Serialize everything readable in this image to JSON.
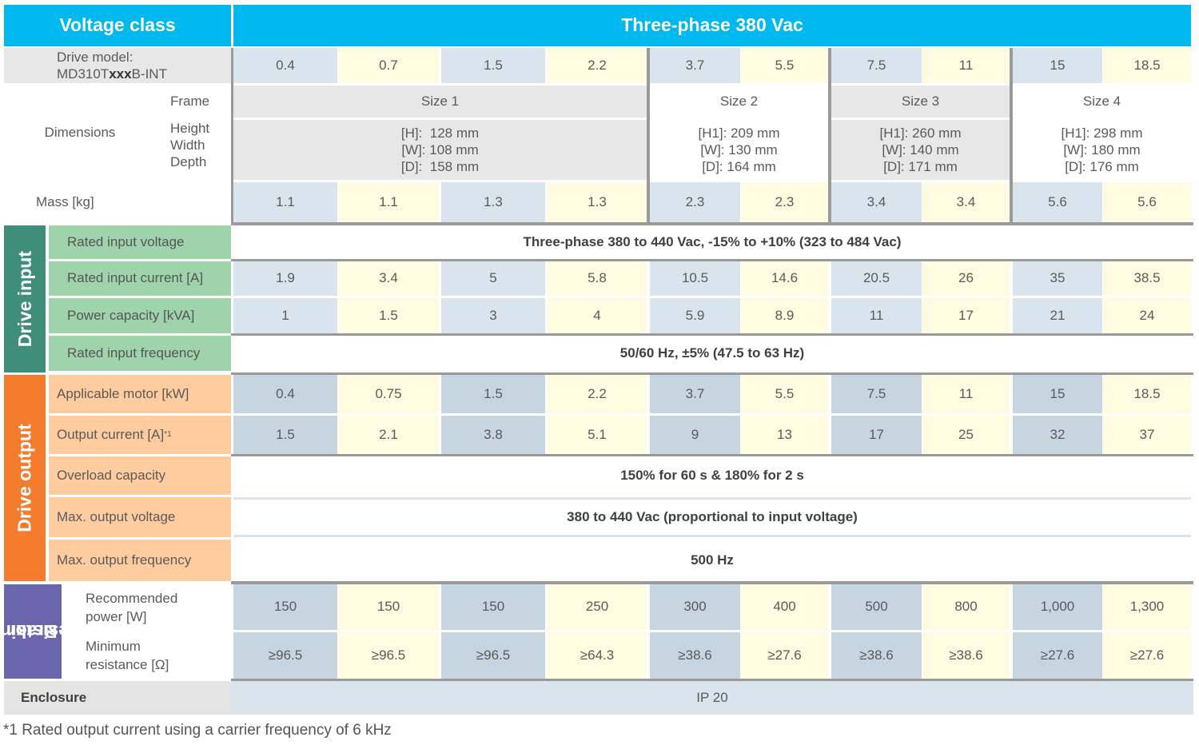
{
  "header": {
    "voltage_class_label": "Voltage class",
    "voltage_class_value": "Three-phase 380 Vac"
  },
  "drive_model": {
    "label_line1": "Drive model:",
    "label_prefix": "MD310T",
    "label_bold": "xxx",
    "label_suffix": "B-INT",
    "values": [
      "0.4",
      "0.7",
      "1.5",
      "2.2",
      "3.7",
      "5.5",
      "7.5",
      "11",
      "15",
      "18.5"
    ]
  },
  "dimensions": {
    "label": "Dimensions",
    "frame_label": "Frame",
    "hwd_labels": [
      "Height",
      "Width",
      "Depth"
    ],
    "frames": [
      {
        "size": "Size 1",
        "h": "[H]:  128 mm",
        "w": "[W]: 108 mm",
        "d": "[D]:  158 mm"
      },
      {
        "size": "Size 2",
        "h": "[H1]: 209 mm",
        "w": "[W]: 130 mm",
        "d": "[D]: 164 mm"
      },
      {
        "size": "Size 3",
        "h": "[H1]: 260 mm",
        "w": "[W]: 140 mm",
        "d": "[D]: 171 mm"
      },
      {
        "size": "Size 4",
        "h": "[H1]: 298 mm",
        "w": "[W]: 180 mm",
        "d": "[D]: 176 mm"
      }
    ]
  },
  "mass": {
    "label": "Mass [kg]",
    "values": [
      "1.1",
      "1.1",
      "1.3",
      "1.3",
      "2.3",
      "2.3",
      "3.4",
      "3.4",
      "5.6",
      "5.6"
    ]
  },
  "drive_input": {
    "group_label": "Drive input",
    "rated_input_voltage": {
      "label": "Rated input voltage",
      "value": "Three-phase 380 to 440 Vac, -15% to +10% (323 to 484 Vac)"
    },
    "rated_input_current": {
      "label": "Rated input current [A]",
      "values": [
        "1.9",
        "3.4",
        "5",
        "5.8",
        "10.5",
        "14.6",
        "20.5",
        "26",
        "35",
        "38.5"
      ]
    },
    "power_capacity": {
      "label": "Power capacity [kVA]",
      "values": [
        "1",
        "1.5",
        "3",
        "4",
        "5.9",
        "8.9",
        "11",
        "17",
        "21",
        "24"
      ]
    },
    "rated_input_frequency": {
      "label": "Rated input frequency",
      "value": "50/60 Hz, ±5% (47.5 to 63 Hz)"
    }
  },
  "drive_output": {
    "group_label": "Drive output",
    "applicable_motor": {
      "label": "Applicable motor [kW]",
      "values": [
        "0.4",
        "0.75",
        "1.5",
        "2.2",
        "3.7",
        "5.5",
        "7.5",
        "11",
        "15",
        "18.5"
      ]
    },
    "output_current": {
      "label": "Output current [A]",
      "footnote_mark": "*1",
      "values": [
        "1.5",
        "2.1",
        "3.8",
        "5.1",
        "9",
        "13",
        "17",
        "25",
        "32",
        "37"
      ]
    },
    "overload_capacity": {
      "label": "Overload capacity",
      "value": "150% for 60 s & 180% for 2 s"
    },
    "max_output_voltage": {
      "label": "Max. output voltage",
      "value": "380 to 440 Vac (proportional to input voltage)"
    },
    "max_output_frequency": {
      "label": "Max. output frequency",
      "value": "500 Hz"
    }
  },
  "braking_resistor": {
    "group_label_line1": "Braking",
    "group_label_line2": "resistor",
    "recommended_power": {
      "label_line1": "Recommended",
      "label_line2": "power [W]",
      "values": [
        "150",
        "150",
        "150",
        "250",
        "300",
        "400",
        "500",
        "800",
        "1,000",
        "1,300"
      ]
    },
    "minimum_resistance": {
      "label_line1": "Minimum",
      "label_line2": "resistance [Ω]",
      "values": [
        "≥96.5",
        "≥96.5",
        "≥96.5",
        "≥64.3",
        "≥38.6",
        "≥27.6",
        "≥38.6",
        "≥38.6",
        "≥27.6",
        "≥27.6"
      ]
    }
  },
  "enclosure": {
    "label": "Enclosure",
    "value": "IP 20"
  },
  "footnote": "*1 Rated output current using a carrier frequency of 6 kHz",
  "colors": {
    "header_blue": "#00b8ee",
    "drive_input_green": "#3f8e79",
    "drive_input_label_green": "#9ed3ac",
    "drive_output_orange": "#f47c2c",
    "drive_output_label_orange": "#ffcc9f",
    "braking_purple": "#6a66ad",
    "cell_yellow": "#fffbe0",
    "cell_blue": "#d9e4ec"
  }
}
